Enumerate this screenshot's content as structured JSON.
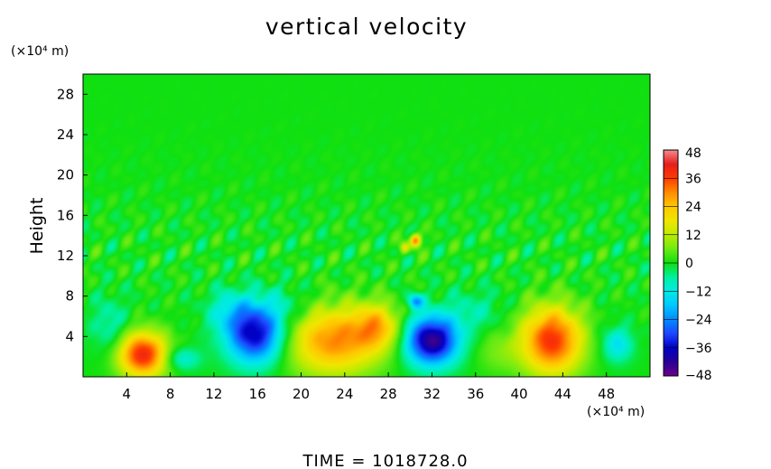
{
  "chart_data": {
    "type": "heatmap",
    "title": "vertical velocity",
    "ylabel": "Height",
    "xlabel": "",
    "x_unit": "(×10⁴ m)",
    "y_unit": "(×10⁴ m)",
    "xlim": [
      0,
      52
    ],
    "ylim": [
      0,
      30
    ],
    "x_ticks": [
      4,
      8,
      12,
      16,
      20,
      24,
      28,
      32,
      36,
      40,
      44,
      48
    ],
    "y_ticks": [
      4,
      8,
      12,
      16,
      20,
      24,
      28
    ],
    "colorbar": {
      "min": -48,
      "max": 48,
      "ticks": [
        48,
        36,
        24,
        12,
        0,
        -12,
        -24,
        -36,
        -48
      ],
      "tick_labels": [
        "48",
        "36",
        "24",
        "12",
        "0",
        "−12",
        "−24",
        "−36",
        "−48"
      ]
    },
    "background_value": 0,
    "features": [
      {
        "x": 5.5,
        "y": 2.2,
        "value": 40,
        "sx": 1.6,
        "sy": 1.6
      },
      {
        "x": 9.0,
        "y": 1.8,
        "value": -12,
        "sx": 1.2,
        "sy": 0.8
      },
      {
        "x": 15.8,
        "y": 4.2,
        "value": -38,
        "sx": 1.8,
        "sy": 2.0
      },
      {
        "x": 13.5,
        "y": 6.5,
        "value": -10,
        "sx": 1.5,
        "sy": 1.5
      },
      {
        "x": 23.0,
        "y": 3.6,
        "value": 30,
        "sx": 3.0,
        "sy": 2.4
      },
      {
        "x": 27.0,
        "y": 5.0,
        "value": 20,
        "sx": 1.5,
        "sy": 1.6
      },
      {
        "x": 32.0,
        "y": 3.6,
        "value": -44,
        "sx": 1.7,
        "sy": 1.7
      },
      {
        "x": 30.5,
        "y": 7.5,
        "value": -22,
        "sx": 0.5,
        "sy": 0.5
      },
      {
        "x": 30.5,
        "y": 13.5,
        "value": 32,
        "sx": 0.35,
        "sy": 0.45
      },
      {
        "x": 29.5,
        "y": 12.8,
        "value": 16,
        "sx": 0.3,
        "sy": 0.4
      },
      {
        "x": 43.0,
        "y": 3.6,
        "value": 38,
        "sx": 2.0,
        "sy": 2.4
      },
      {
        "x": 49.0,
        "y": 3.2,
        "value": -14,
        "sx": 1.0,
        "sy": 1.2
      },
      {
        "x": 18.5,
        "y": 7.0,
        "value": -6,
        "sx": 2.0,
        "sy": 1.5
      },
      {
        "x": 36.0,
        "y": 6.5,
        "value": -6,
        "sx": 2.0,
        "sy": 1.5
      },
      {
        "x": 38.0,
        "y": 2.5,
        "value": 6,
        "sx": 1.5,
        "sy": 1.5
      },
      {
        "x": 2.5,
        "y": 5.0,
        "value": -8,
        "sx": 1.2,
        "sy": 2.0
      }
    ]
  },
  "footer": {
    "time_label": "TIME  =  1018728.0"
  }
}
